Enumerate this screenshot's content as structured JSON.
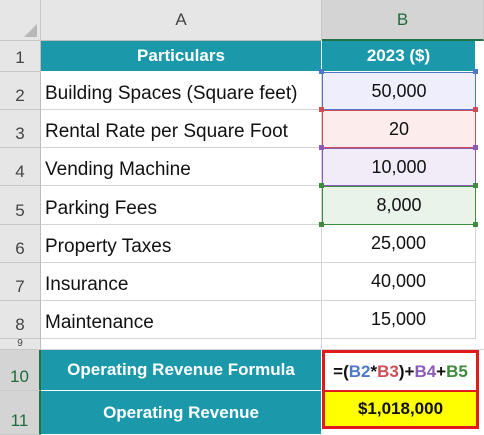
{
  "columns": {
    "a": "A",
    "b": "B"
  },
  "rows": [
    {
      "num": "1"
    },
    {
      "num": "2"
    },
    {
      "num": "3"
    },
    {
      "num": "4"
    },
    {
      "num": "5"
    },
    {
      "num": "6"
    },
    {
      "num": "7"
    },
    {
      "num": "8"
    },
    {
      "num": "9"
    },
    {
      "num": "10"
    },
    {
      "num": "11"
    }
  ],
  "table": {
    "header": {
      "particulars": "Particulars",
      "year": "2023 ($)"
    },
    "items": [
      {
        "label": "Building Spaces (Square feet)",
        "value": "50,000"
      },
      {
        "label": "Rental Rate per Square Foot",
        "value": "20"
      },
      {
        "label": "Vending Machine",
        "value": "10,000"
      },
      {
        "label": "Parking Fees",
        "value": "8,000"
      },
      {
        "label": "Property Taxes",
        "value": "25,000"
      },
      {
        "label": "Insurance",
        "value": "40,000"
      },
      {
        "label": "Maintenance",
        "value": "15,000"
      }
    ],
    "formula_row": {
      "label": "Operating Revenue Formula",
      "parts": [
        "=(",
        "B2",
        "*",
        "B3",
        ")+",
        "B4",
        "+",
        "B5"
      ]
    },
    "result_row": {
      "label": "Operating Revenue",
      "value": "$1,018,000"
    }
  },
  "colors": {
    "teal_header": "#1b99ab",
    "ref_b2": "#4f76c9",
    "ref_b3": "#d14d55",
    "ref_b4": "#8a5bb8",
    "ref_b5": "#3e8a3e",
    "selection_border": "#e11b1b",
    "result_fill": "#ffff00"
  },
  "icons": {
    "select_all": "select-all-triangle-icon"
  }
}
